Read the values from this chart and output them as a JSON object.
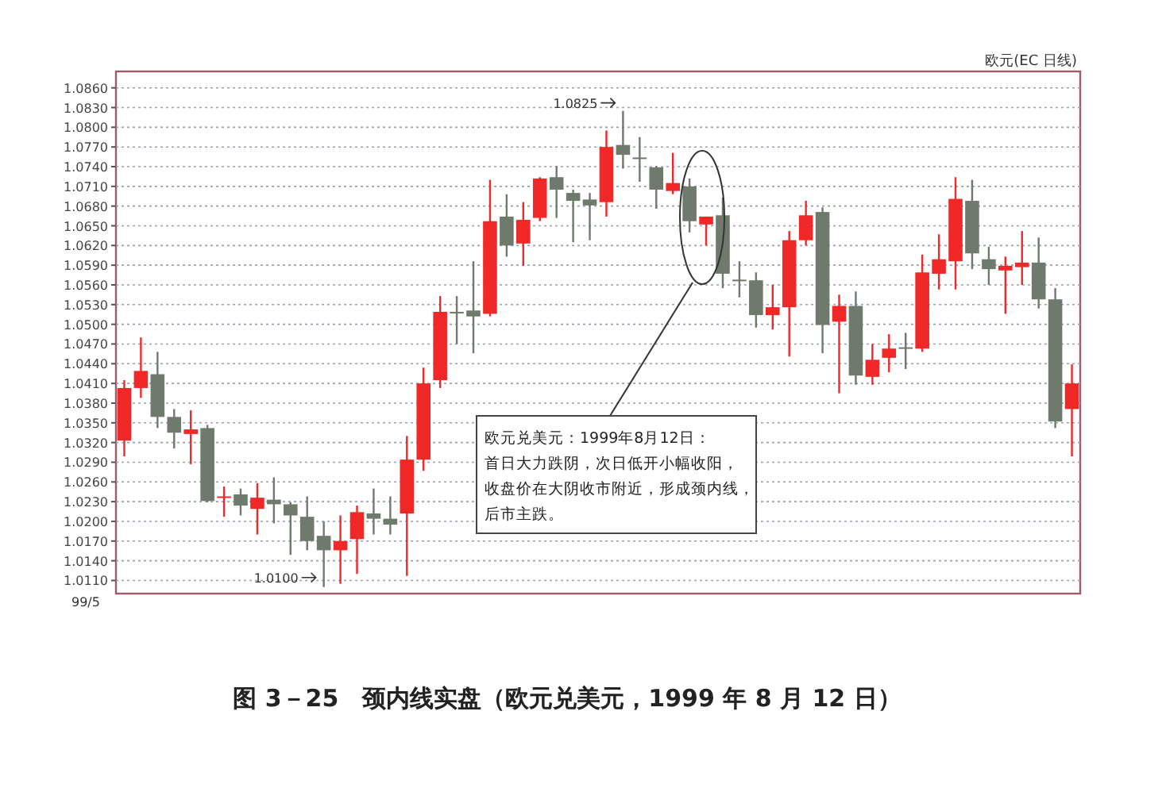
{
  "chart_data": {
    "type": "candlestick",
    "title": "图 3－25　颈内线实盘（欧元兑美元，1999 年 8 月 12 日）",
    "subtitle": "欧元(EC 日线)",
    "categories": [
      null,
      null,
      null,
      null,
      null,
      null,
      null,
      null,
      null,
      null,
      null,
      null,
      null,
      null,
      null,
      null,
      null,
      null,
      null,
      null,
      null,
      null,
      null,
      null,
      null,
      null,
      null,
      null,
      null,
      null,
      null,
      null,
      null,
      null,
      null,
      null,
      null,
      null,
      null,
      null,
      null,
      null,
      null,
      null,
      null,
      null,
      null,
      null,
      null,
      null,
      null,
      null,
      null,
      null,
      null,
      null,
      null,
      null
    ],
    "ohlc": [
      [
        1.0323,
        1.0415,
        1.0299,
        1.0403
      ],
      [
        1.0403,
        1.048,
        1.0388,
        1.0429
      ],
      [
        1.0424,
        1.0458,
        1.0342,
        1.0359
      ],
      [
        1.0359,
        1.0371,
        1.0311,
        1.0335
      ],
      [
        1.0333,
        1.0369,
        1.0287,
        1.034
      ],
      [
        1.0342,
        1.0347,
        1.0229,
        1.0231
      ],
      [
        1.0236,
        1.0253,
        1.0207,
        1.0238
      ],
      [
        1.0241,
        1.025,
        1.0209,
        1.0224
      ],
      [
        1.0219,
        1.0258,
        1.018,
        1.0236
      ],
      [
        1.0233,
        1.0267,
        1.0197,
        1.0226
      ],
      [
        1.0226,
        1.0229,
        1.0149,
        1.0209
      ],
      [
        1.0207,
        1.0238,
        1.0156,
        1.017
      ],
      [
        1.0178,
        1.02,
        1.01,
        1.0156
      ],
      [
        1.0156,
        1.0209,
        1.0105,
        1.017
      ],
      [
        1.0173,
        1.0224,
        1.012,
        1.0214
      ],
      [
        1.0212,
        1.025,
        1.018,
        1.0204
      ],
      [
        1.0204,
        1.0238,
        1.018,
        1.0195
      ],
      [
        1.0212,
        1.033,
        1.0117,
        1.0294
      ],
      [
        1.0294,
        1.0434,
        1.0277,
        1.041
      ],
      [
        1.0415,
        1.0543,
        1.0403,
        1.0519
      ],
      [
        1.0519,
        1.0543,
        1.047,
        1.0517
      ],
      [
        1.0521,
        1.0596,
        1.0456,
        1.0512
      ],
      [
        1.0516,
        1.072,
        1.0512,
        1.0657
      ],
      [
        1.0664,
        1.0698,
        1.0603,
        1.062
      ],
      [
        1.0623,
        1.0686,
        1.0589,
        1.0659
      ],
      [
        1.0662,
        1.0724,
        1.0657,
        1.0722
      ],
      [
        1.0724,
        1.0741,
        1.0662,
        1.0705
      ],
      [
        1.07,
        1.0705,
        1.0625,
        1.0688
      ],
      [
        1.069,
        1.07,
        1.0628,
        1.0681
      ],
      [
        1.0686,
        1.0795,
        1.0664,
        1.077
      ],
      [
        1.0773,
        1.0825,
        1.0737,
        1.0758
      ],
      [
        1.0754,
        1.0785,
        1.0717,
        1.0753
      ],
      [
        1.0739,
        1.0741,
        1.0676,
        1.0705
      ],
      [
        1.0703,
        1.0761,
        1.0698,
        1.0715
      ],
      [
        1.071,
        1.0722,
        1.064,
        1.0657
      ],
      [
        1.0652,
        1.0664,
        1.062,
        1.0664
      ],
      [
        1.0666,
        1.0693,
        1.0555,
        1.0577
      ],
      [
        1.0568,
        1.0596,
        1.0541,
        1.0567
      ],
      [
        1.0567,
        1.0579,
        1.0495,
        1.0514
      ],
      [
        1.0514,
        1.056,
        1.0492,
        1.0526
      ],
      [
        1.0526,
        1.0642,
        1.0451,
        1.0628
      ],
      [
        1.0628,
        1.0688,
        1.062,
        1.0666
      ],
      [
        1.0671,
        1.0678,
        1.0456,
        1.0499
      ],
      [
        1.0504,
        1.0545,
        1.0395,
        1.0528
      ],
      [
        1.0528,
        1.055,
        1.0408,
        1.0422
      ],
      [
        1.042,
        1.047,
        1.0408,
        1.0446
      ],
      [
        1.0449,
        1.0485,
        1.0427,
        1.0463
      ],
      [
        1.0465,
        1.0487,
        1.0432,
        1.0463
      ],
      [
        1.0463,
        1.0606,
        1.0458,
        1.0579
      ],
      [
        1.0577,
        1.0637,
        1.0553,
        1.0599
      ],
      [
        1.0596,
        1.0724,
        1.0553,
        1.0691
      ],
      [
        1.0688,
        1.072,
        1.0584,
        1.0608
      ],
      [
        1.0599,
        1.0618,
        1.056,
        1.0584
      ],
      [
        1.0582,
        1.0603,
        1.0516,
        1.0589
      ],
      [
        1.0587,
        1.0642,
        1.056,
        1.0594
      ],
      [
        1.0594,
        1.0632,
        1.0524,
        1.0538
      ],
      [
        1.0538,
        1.0555,
        1.0342,
        1.0352
      ],
      [
        1.0371,
        1.0439,
        1.0299,
        1.041
      ]
    ],
    "colors": [
      "#f02828",
      "#f02828",
      "#6e7a6c",
      "#6e7a6c",
      "#f02828",
      "#6e7a6c",
      "#f02828",
      "#6e7a6c",
      "#f02828",
      "#6e7a6c",
      "#6e7a6c",
      "#6e7a6c",
      "#6e7a6c",
      "#f02828",
      "#f02828",
      "#6e7a6c",
      "#6e7a6c",
      "#f02828",
      "#f02828",
      "#f02828",
      "#6e7a6c",
      "#6e7a6c",
      "#f02828",
      "#6e7a6c",
      "#f02828",
      "#f02828",
      "#6e7a6c",
      "#6e7a6c",
      "#6e7a6c",
      "#f02828",
      "#6e7a6c",
      "#6e7a6c",
      "#6e7a6c",
      "#f02828",
      "#6e7a6c",
      "#f02828",
      "#6e7a6c",
      "#6e7a6c",
      "#6e7a6c",
      "#f02828",
      "#f02828",
      "#f02828",
      "#6e7a6c",
      "#f02828",
      "#6e7a6c",
      "#f02828",
      "#f02828",
      "#6e7a6c",
      "#f02828",
      "#f02828",
      "#f02828",
      "#6e7a6c",
      "#6e7a6c",
      "#f02828",
      "#f02828",
      "#6e7a6c",
      "#6e7a6c",
      "#f02828"
    ],
    "ylim": [
      1.009,
      1.0885
    ],
    "yticks": [
      {
        "value": 1.011,
        "label": "1.0110"
      },
      {
        "value": 1.014,
        "label": "1.0140"
      },
      {
        "value": 1.017,
        "label": "1.0170"
      },
      {
        "value": 1.02,
        "label": "1.0200"
      },
      {
        "value": 1.023,
        "label": "1.0230"
      },
      {
        "value": 1.026,
        "label": "1.0260"
      },
      {
        "value": 1.029,
        "label": "1.0290"
      },
      {
        "value": 1.032,
        "label": "1.0320"
      },
      {
        "value": 1.035,
        "label": "1.0350"
      },
      {
        "value": 1.038,
        "label": "1.0380"
      },
      {
        "value": 1.041,
        "label": "1.0410"
      },
      {
        "value": 1.044,
        "label": "1.0440"
      },
      {
        "value": 1.047,
        "label": "1.0470"
      },
      {
        "value": 1.05,
        "label": "1.0500"
      },
      {
        "value": 1.053,
        "label": "1.0530"
      },
      {
        "value": 1.056,
        "label": "1.0560"
      },
      {
        "value": 1.059,
        "label": "1.0590"
      },
      {
        "value": 1.062,
        "label": "1.0620"
      },
      {
        "value": 1.065,
        "label": "1.0650"
      },
      {
        "value": 1.068,
        "label": "1.0680"
      },
      {
        "value": 1.071,
        "label": "1.0710"
      },
      {
        "value": 1.074,
        "label": "1.0740"
      },
      {
        "value": 1.077,
        "label": "1.0770"
      },
      {
        "value": 1.08,
        "label": "1.0800"
      },
      {
        "value": 1.083,
        "label": "1.0830"
      },
      {
        "value": 1.086,
        "label": "1.0860"
      }
    ],
    "grid": "y",
    "annotations": [
      "1.0825",
      "1.0100",
      "99/5",
      "欧元兑美元：1999年8月12日：",
      "首日大力跌阴，次日低开小幅收阳，",
      "收盘价在大阴收市附近，形成颈内线，",
      "后市主跌。"
    ]
  }
}
